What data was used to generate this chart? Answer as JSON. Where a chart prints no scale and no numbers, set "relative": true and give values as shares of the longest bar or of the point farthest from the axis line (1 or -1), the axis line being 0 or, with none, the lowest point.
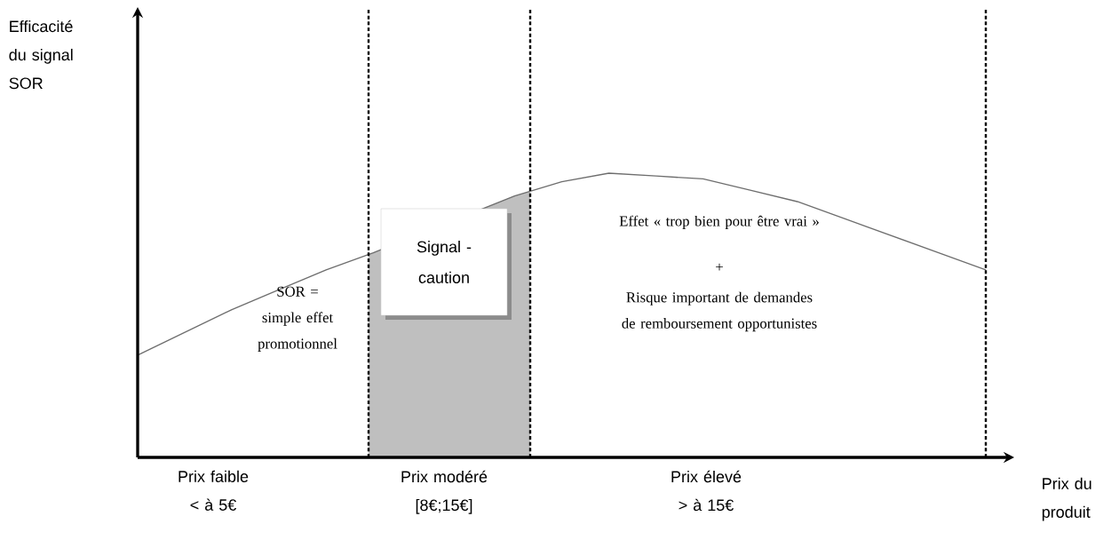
{
  "chart_data": {
    "type": "line",
    "relative": true,
    "xlabel": "Prix du produit",
    "categories": [
      null,
      null,
      null,
      null,
      null,
      null,
      null,
      null,
      null,
      null,
      null,
      null,
      null,
      null,
      null,
      null,
      null,
      null,
      null
    ],
    "series": [
      {
        "color": "#6e6e6e",
        "values": [
          0.36,
          0.44,
          0.52,
          0.59,
          0.66,
          0.72,
          null,
          null,
          0.92,
          0.97,
          1.0,
          0.99,
          0.98,
          0.94,
          0.9,
          0.84,
          0.78,
          0.72,
          0.66
        ]
      }
    ],
    "annotations": [
      "Efficacité du signal SOR",
      "SOR = simple effet promotionnel",
      "Signal - caution",
      "Effet « trop bien pour être vrai »",
      "+",
      "Risque important de demandes de remboursement opportunistes",
      "Prix faible < à 5€",
      "Prix modéré [8€;15€]",
      "Prix élevé > à 15€"
    ],
    "marker": "none",
    "line_style": "solid"
  }
}
